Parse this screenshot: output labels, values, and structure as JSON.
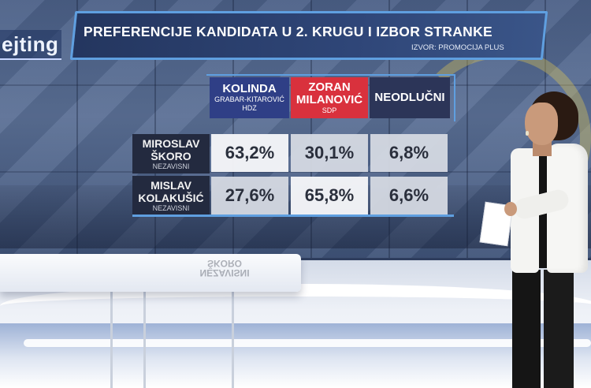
{
  "show_logo": "ejting",
  "title": "PREFERENCIJE KANDIDATA U 2. KRUGU I IZBOR STRANKE",
  "source": "IZVOR: PROMOCIJA PLUS",
  "columns": [
    {
      "name_line1": "KOLINDA",
      "name_line2": "GRABAR-KITAROVIĆ",
      "party": "HDZ",
      "color": "#2f3f86"
    },
    {
      "name_line1": "ZORAN",
      "name_line2": "MILANOVIĆ",
      "party": "SDP",
      "color": "#d9313d"
    },
    {
      "name_line1": "NEODLUČNI",
      "name_line2": "",
      "party": "",
      "color": "#2c3558"
    }
  ],
  "rows": [
    {
      "name_line1": "MIROSLAV",
      "name_line2": "ŠKORO",
      "party": "NEZAVISNI",
      "values": [
        "63,2%",
        "30,1%",
        "6,8%"
      ]
    },
    {
      "name_line1": "MISLAV",
      "name_line2": "KOLAKUŠIĆ",
      "party": "NEZAVISNI",
      "values": [
        "27,6%",
        "65,8%",
        "6,6%"
      ]
    }
  ],
  "desk_reflection": {
    "line1": "NEZAVISNI",
    "line2": "ŠKORO"
  },
  "colors": {
    "accent_border": "#5f9fe0",
    "title_bg": "#2f4678",
    "hdz": "#2f3f86",
    "sdp": "#d9313d"
  }
}
